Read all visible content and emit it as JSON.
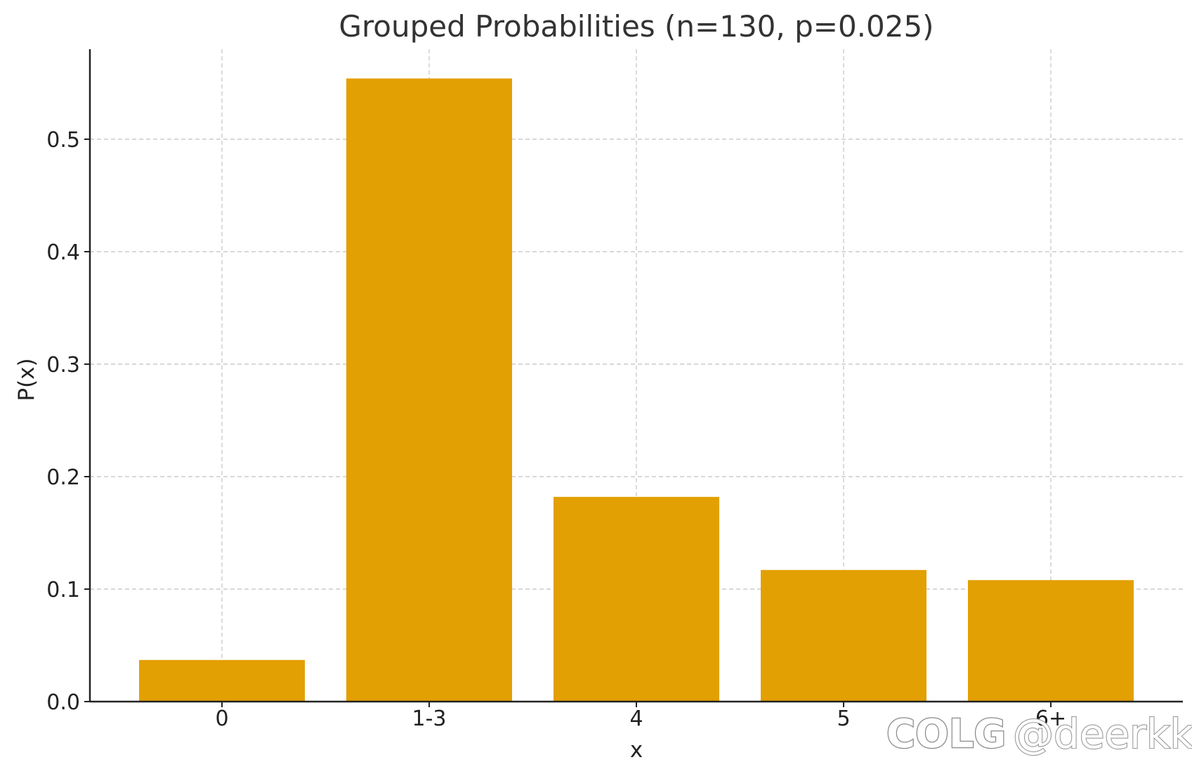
{
  "chart_data": {
    "type": "bar",
    "title": "Grouped Probabilities (n=130, p=0.025)",
    "xlabel": "x",
    "ylabel": "P(x)",
    "categories": [
      "0",
      "1-3",
      "4",
      "5",
      "6+"
    ],
    "values": [
      0.037,
      0.554,
      0.182,
      0.117,
      0.108
    ],
    "ylim": [
      0,
      0.58
    ],
    "yticks": [
      0.0,
      0.1,
      0.2,
      0.3,
      0.4,
      0.5
    ],
    "ytick_labels": [
      "0.0",
      "0.1",
      "0.2",
      "0.3",
      "0.4",
      "0.5"
    ],
    "grid": true,
    "bar_color": "#E3A003"
  },
  "watermark": {
    "logo": "COLG",
    "handle": "@deerkk"
  }
}
